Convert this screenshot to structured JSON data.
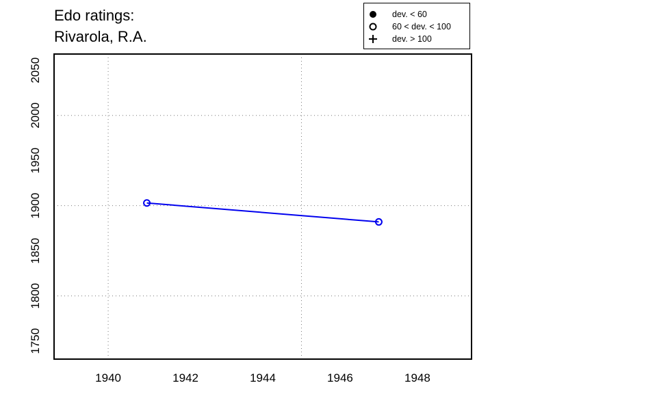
{
  "chart_data": {
    "type": "line",
    "title": [
      "Edo ratings:",
      "Rivarola, R.A."
    ],
    "xlabel": "",
    "ylabel": "",
    "xlim": [
      1938.6,
      1949.4
    ],
    "ylim": [
      1730,
      2068
    ],
    "x_ticks": [
      1940,
      1942,
      1944,
      1946,
      1948
    ],
    "y_ticks": [
      1750,
      1800,
      1850,
      1900,
      1950,
      2000,
      2050
    ],
    "grid_x": [
      1940,
      1945
    ],
    "grid_y": [
      1800,
      1900,
      2000
    ],
    "grid": "dotted",
    "legend_placement": "top-right above plot",
    "legend": [
      {
        "symbol": "filled-circle",
        "label": "dev. < 60"
      },
      {
        "symbol": "open-circle",
        "label": "60 < dev. < 100"
      },
      {
        "symbol": "plus",
        "label": "dev. > 100"
      }
    ],
    "series": [
      {
        "color": "#0000ee",
        "marker": "open-circle",
        "points": [
          {
            "x": 1941,
            "y": 1903
          },
          {
            "x": 1947,
            "y": 1882
          }
        ]
      }
    ]
  }
}
